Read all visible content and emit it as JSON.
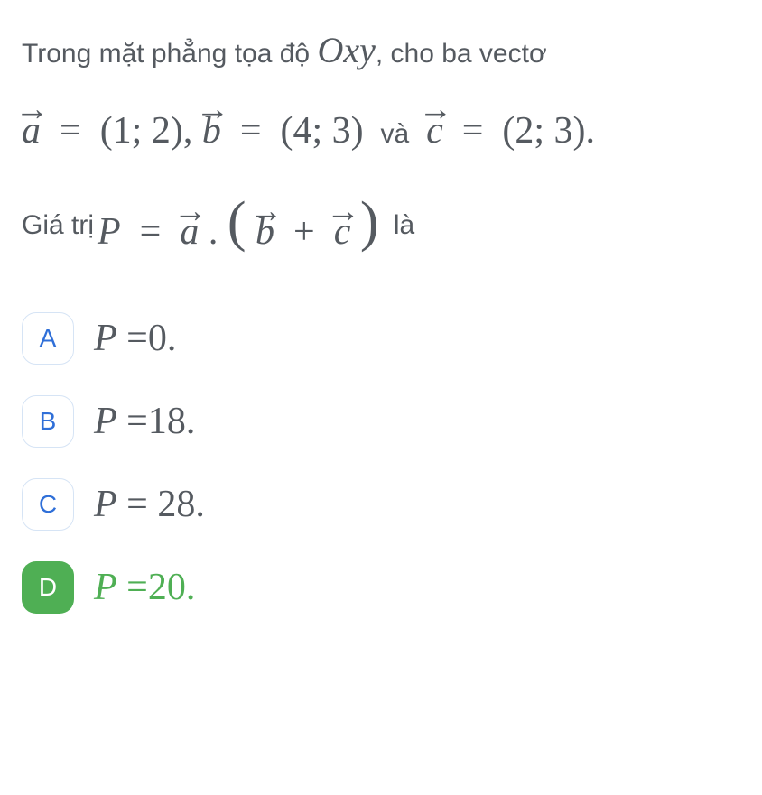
{
  "question": {
    "line1_prefix": "Trong mặt phẳng tọa độ ",
    "line1_math": "Oxy",
    "line1_suffix": ", cho ba vectơ",
    "vec_a_label": "a",
    "vec_b_label": "b",
    "vec_c_label": "c",
    "a_coords": "(1; 2)",
    "b_coords": "(4; 3)",
    "and_word": "và",
    "c_coords": "(2; 3).",
    "eq_symbol": "=",
    "comma": ", ",
    "formula_prefix": "Giá trị ",
    "P_label": "P",
    "dot": ".",
    "plus": "+",
    "formula_suffix": "là"
  },
  "options": [
    {
      "letter": "A",
      "lhs": "P",
      "rhs": "=0.",
      "selected": false
    },
    {
      "letter": "B",
      "lhs": "P",
      "rhs": "=18.",
      "selected": false
    },
    {
      "letter": "C",
      "lhs": "P",
      "rhs": "= 28.",
      "selected": false
    },
    {
      "letter": "D",
      "lhs": "P",
      "rhs": "=20.",
      "selected": true
    }
  ],
  "colors": {
    "text": "#555a60",
    "accent_blue": "#2f6fd8",
    "badge_border": "#d6e4f5",
    "selected_green": "#4faf54",
    "background": "#ffffff"
  }
}
